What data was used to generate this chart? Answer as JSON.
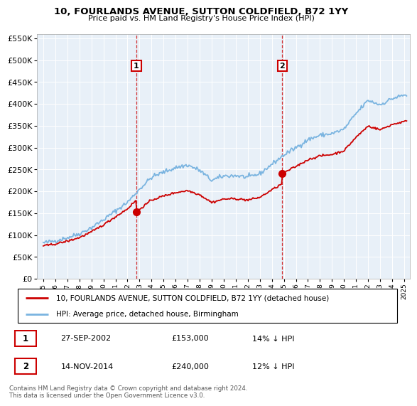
{
  "title": "10, FOURLANDS AVENUE, SUTTON COLDFIELD, B72 1YY",
  "subtitle": "Price paid vs. HM Land Registry's House Price Index (HPI)",
  "sale1_date": "27-SEP-2002",
  "sale1_price": 153000,
  "sale1_label": "1",
  "sale1_year": 2002.74,
  "sale2_date": "14-NOV-2014",
  "sale2_price": 240000,
  "sale2_label": "2",
  "sale2_year": 2014.87,
  "legend_line1": "10, FOURLANDS AVENUE, SUTTON COLDFIELD, B72 1YY (detached house)",
  "legend_line2": "HPI: Average price, detached house, Birmingham",
  "footnote": "Contains HM Land Registry data © Crown copyright and database right 2024.\nThis data is licensed under the Open Government Licence v3.0.",
  "table_row1": [
    "1",
    "27-SEP-2002",
    "£153,000",
    "14% ↓ HPI"
  ],
  "table_row2": [
    "2",
    "14-NOV-2014",
    "£240,000",
    "12% ↓ HPI"
  ],
  "hpi_color": "#7ab4e0",
  "price_color": "#cc0000",
  "vline_color": "#cc0000",
  "ylim": [
    0,
    560000
  ],
  "xlim_start": 1994.5,
  "xlim_end": 2025.5,
  "background_color": "#ffffff",
  "plot_bg_color": "#e8f0f8"
}
